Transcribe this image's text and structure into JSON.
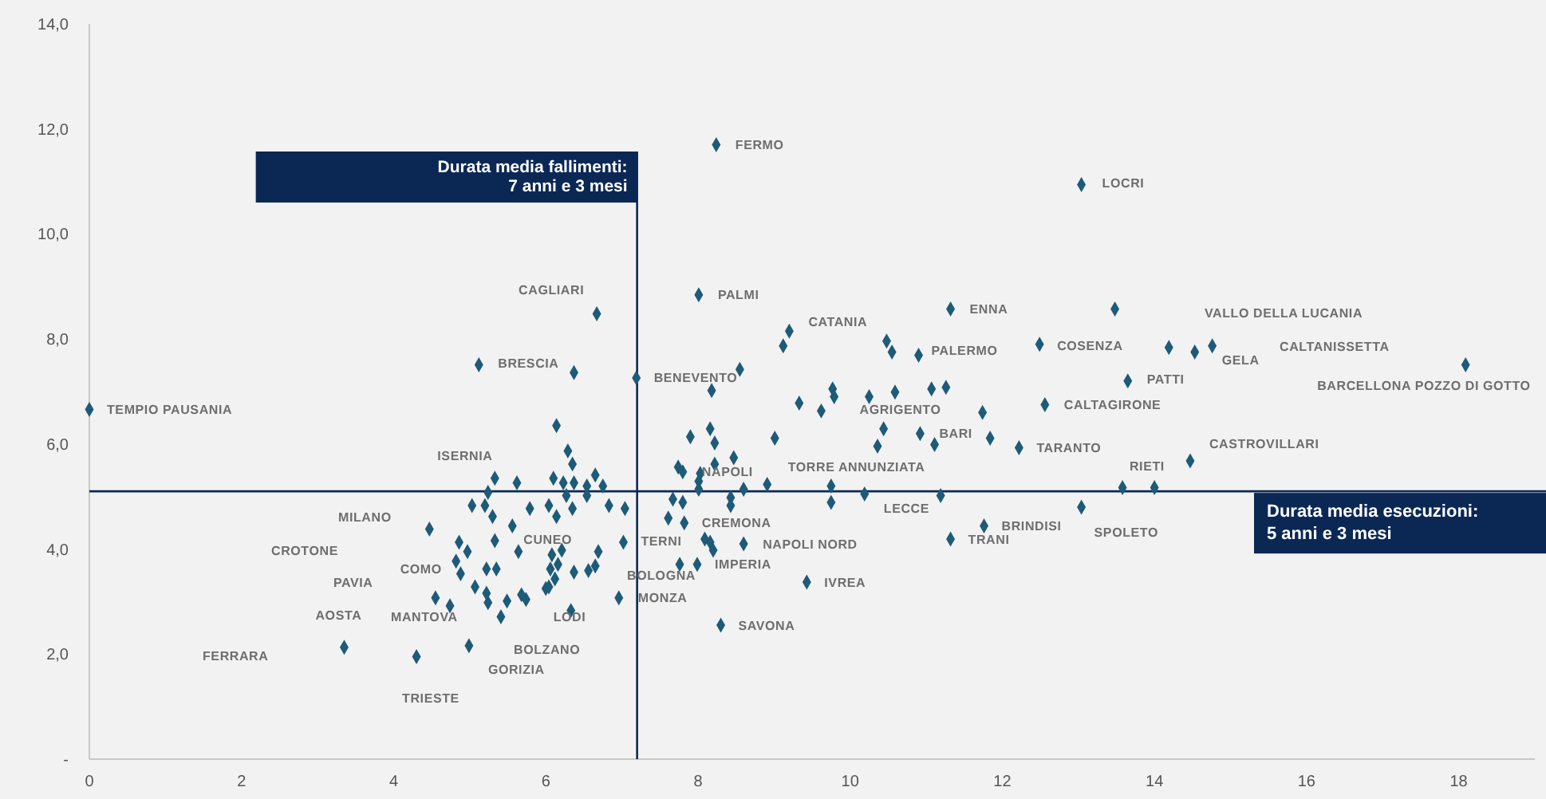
{
  "chart_data": {
    "type": "scatter",
    "color": "#1d5b78",
    "marker": "diamond",
    "xlim": [
      0,
      19
    ],
    "ylim": [
      0,
      14
    ],
    "xticks": [
      0,
      2,
      4,
      6,
      8,
      10,
      12,
      14,
      16,
      18
    ],
    "yticks": [
      {
        "value": 0,
        "label": "-"
      },
      {
        "value": 2,
        "label": "2,0"
      },
      {
        "value": 4,
        "label": "4,0"
      },
      {
        "value": 6,
        "label": "6,0"
      },
      {
        "value": 8,
        "label": "8,0"
      },
      {
        "value": 10,
        "label": "10,0"
      },
      {
        "value": 12,
        "label": "12,0"
      },
      {
        "value": 14,
        "label": "14,0"
      }
    ],
    "x": [
      0.0,
      5.12,
      3.35,
      4.3,
      4.99,
      4.47,
      5.33,
      5.62,
      5.24,
      5.03,
      5.2,
      5.3,
      5.56,
      4.86,
      4.97,
      5.33,
      5.64,
      4.82,
      4.88,
      5.22,
      5.35,
      4.55,
      4.74,
      5.07,
      5.22,
      5.24,
      5.49,
      5.41,
      5.68,
      5.74,
      6.37,
      7.19,
      8.55,
      8.18,
      6.14,
      6.29,
      6.35,
      6.1,
      6.23,
      6.37,
      6.65,
      6.75,
      6.54,
      6.54,
      6.27,
      5.79,
      6.04,
      6.35,
      6.14,
      6.83,
      7.04,
      6.21,
      6.08,
      6.69,
      6.06,
      6.16,
      6.37,
      6.56,
      6.65,
      6.12,
      6.0,
      6.04,
      6.33,
      6.96,
      7.02,
      7.9,
      8.16,
      8.22,
      8.47,
      7.74,
      7.8,
      8.01,
      8.01,
      8.22,
      8.6,
      8.43,
      8.43,
      7.67,
      7.8,
      7.61,
      7.82,
      8.09,
      8.16,
      8.2,
      8.6,
      7.76,
      7.99,
      8.3,
      8.24,
      13.04,
      8.01,
      6.67,
      9.2,
      9.12,
      10.48,
      10.55,
      10.9,
      11.32,
      12.49,
      9.33,
      9.62,
      9.77,
      9.79,
      10.25,
      10.59,
      11.07,
      11.26,
      11.74,
      12.56,
      9.01,
      10.44,
      10.36,
      10.92,
      11.11,
      11.84,
      12.22,
      8.03,
      8.91,
      9.75,
      10.19,
      11.19,
      9.75,
      13.04,
      9.43,
      11.32,
      11.76,
      13.48,
      14.19,
      14.53,
      14.76,
      13.65,
      18.09,
      14.47,
      13.58,
      14.0
    ],
    "values": [
      6.66,
      7.51,
      2.13,
      1.95,
      2.16,
      4.38,
      5.35,
      5.26,
      5.08,
      4.83,
      4.83,
      4.62,
      4.44,
      4.13,
      3.95,
      4.16,
      3.95,
      3.77,
      3.53,
      3.62,
      3.62,
      3.07,
      2.92,
      3.28,
      3.16,
      2.98,
      3.01,
      2.71,
      3.13,
      3.04,
      7.36,
      7.26,
      7.42,
      7.02,
      6.35,
      5.87,
      5.62,
      5.35,
      5.26,
      5.26,
      5.41,
      5.2,
      5.2,
      5.02,
      5.02,
      4.77,
      4.83,
      4.77,
      4.62,
      4.83,
      4.77,
      3.98,
      3.89,
      3.95,
      3.62,
      3.71,
      3.56,
      3.59,
      3.68,
      3.43,
      3.25,
      3.28,
      2.83,
      3.07,
      4.13,
      6.14,
      6.29,
      6.02,
      5.74,
      5.56,
      5.47,
      5.29,
      5.14,
      5.62,
      5.14,
      4.98,
      4.83,
      4.95,
      4.89,
      4.59,
      4.5,
      4.19,
      4.13,
      3.98,
      4.1,
      3.71,
      3.71,
      2.55,
      11.7,
      10.94,
      8.84,
      8.48,
      8.15,
      7.87,
      7.96,
      7.75,
      7.69,
      8.57,
      7.9,
      6.78,
      6.63,
      7.05,
      6.9,
      6.9,
      6.99,
      7.05,
      7.08,
      6.6,
      6.75,
      6.11,
      6.29,
      5.96,
      6.2,
      5.99,
      6.11,
      5.93,
      5.44,
      5.23,
      5.2,
      5.05,
      5.02,
      4.89,
      4.8,
      3.37,
      4.19,
      4.44,
      8.57,
      7.84,
      7.75,
      7.87,
      7.2,
      7.51,
      5.68,
      5.17,
      5.17
    ],
    "ref_lines": [
      {
        "axis": "x",
        "value": 7.2,
        "label": "Durata media fallimenti:\n7 anni e 3 mesi",
        "color": "#0b2855"
      },
      {
        "axis": "y",
        "value": 5.1,
        "label": "Durata media esecuzioni:\n5 anni e 3 mesi",
        "color": "#0b2855"
      }
    ],
    "annotations": [
      {
        "text": "TEMPIO PAUSANIA",
        "x": 0.0,
        "y": 6.66
      },
      "FERRARA",
      {
        "text": "AOSTA",
        "x": 3.35,
        "y": 2.13
      },
      {
        "text": "TRIESTE",
        "x": 4.3,
        "y": 1.95
      },
      {
        "text": "MANTOVA",
        "x": 4.74,
        "y": 2.92
      },
      "PAVIA",
      {
        "text": "COMO",
        "x": 4.82,
        "y": 3.77
      },
      "CROTONE",
      "MILANO",
      {
        "text": "ISERNIA",
        "x": 5.33,
        "y": 5.35
      },
      {
        "text": "BRESCIA",
        "x": 5.12,
        "y": 7.51
      },
      {
        "text": "CAGLIARI",
        "x": 6.67,
        "y": 8.48
      },
      {
        "text": "CUNEO",
        "x": 5.33,
        "y": 4.16
      },
      {
        "text": "LODI",
        "x": 6.33,
        "y": 2.83
      },
      "BOLZANO",
      {
        "text": "GORIZIA",
        "x": 4.99,
        "y": 2.16
      },
      {
        "text": "MONZA",
        "x": 6.96,
        "y": 3.07
      },
      {
        "text": "BOLOGNA",
        "x": 7.76,
        "y": 3.71
      },
      {
        "text": "TERNI",
        "x": 7.02,
        "y": 4.13
      },
      {
        "text": "IMPERIA",
        "x": 7.99,
        "y": 3.71
      },
      {
        "text": "CREMONA",
        "x": 7.82,
        "y": 4.5
      },
      {
        "text": "NAPOLI NORD",
        "x": 8.6,
        "y": 4.1
      },
      {
        "text": "NAPOLI",
        "x": 7.8,
        "y": 5.47
      },
      {
        "text": "TORRE ANNUNZIATA",
        "x": 8.91,
        "y": 5.23
      },
      {
        "text": "LECCE",
        "x": 10.19,
        "y": 5.05
      },
      {
        "text": "IVREA",
        "x": 9.43,
        "y": 3.37
      },
      {
        "text": "SAVONA",
        "x": 8.3,
        "y": 2.55
      },
      {
        "text": "BENEVENTO",
        "x": 7.19,
        "y": 7.26
      },
      {
        "text": "FERMO",
        "x": 8.24,
        "y": 11.7
      },
      {
        "text": "PALMI",
        "x": 8.01,
        "y": 8.84
      },
      {
        "text": "CATANIA",
        "x": 9.2,
        "y": 8.15
      },
      {
        "text": "ENNA",
        "x": 11.32,
        "y": 8.57
      },
      {
        "text": "PALERMO",
        "x": 10.9,
        "y": 7.69
      },
      {
        "text": "AGRIGENTO",
        "x": 10.25,
        "y": 6.9
      },
      {
        "text": "BARI",
        "x": 10.92,
        "y": 6.2
      },
      {
        "text": "COSENZA",
        "x": 12.49,
        "y": 7.9
      },
      {
        "text": "CALTAGIRONE",
        "x": 12.56,
        "y": 6.75
      },
      {
        "text": "TARANTO",
        "x": 12.22,
        "y": 5.93
      },
      {
        "text": "LOCRI",
        "x": 13.04,
        "y": 10.94
      },
      "VALLO DELLA LUCANIA",
      "CALTANISSETTA",
      {
        "text": "GELA",
        "x": 14.53,
        "y": 7.75
      },
      {
        "text": "PATTI",
        "x": 13.65,
        "y": 7.2
      },
      {
        "text": "BARCELLONA POZZO DI GOTTO",
        "x": 18.09,
        "y": 7.51
      },
      {
        "text": "CASTROVILLARI",
        "x": 14.47,
        "y": 5.68
      },
      {
        "text": "RIETI",
        "x": 14.47,
        "y": 5.68
      },
      {
        "text": "BRINDISI",
        "x": 11.76,
        "y": 4.44
      },
      {
        "text": "TRANI",
        "x": 11.32,
        "y": 4.19
      },
      {
        "text": "SPOLETO",
        "x": 13.04,
        "y": 4.8
      }
    ]
  }
}
